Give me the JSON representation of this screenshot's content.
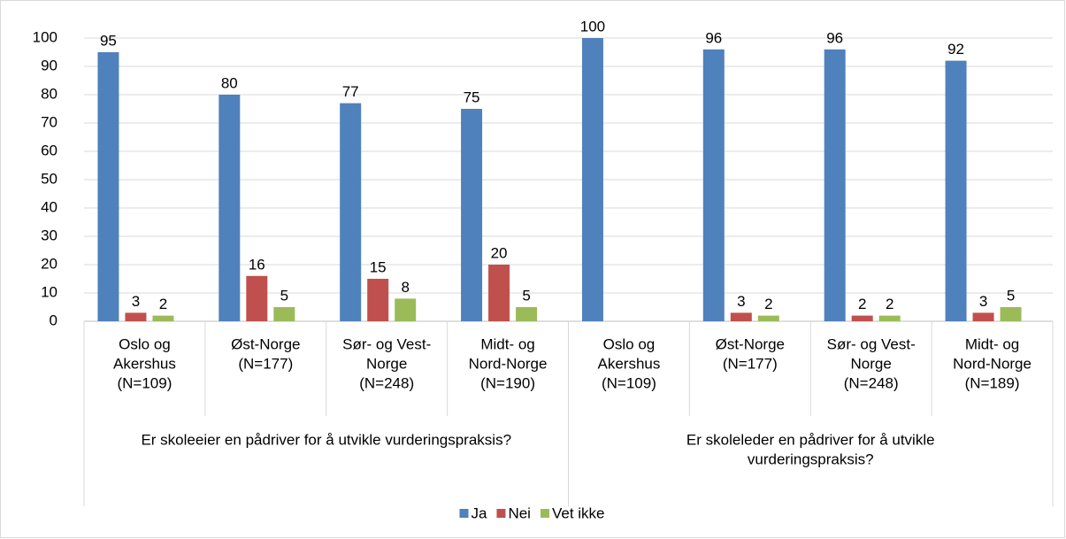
{
  "chart_data": {
    "type": "bar",
    "categories": [
      [
        "Oslo og",
        "Akershus",
        "(N=109)"
      ],
      [
        "Øst-Norge",
        "(N=177)"
      ],
      [
        "Sør- og Vest-",
        "Norge",
        "(N=248)"
      ],
      [
        "Midt- og",
        "Nord-Norge",
        "(N=190)"
      ],
      [
        "Oslo og",
        "Akershus",
        "(N=109)"
      ],
      [
        "Øst-Norge",
        "(N=177)"
      ],
      [
        "Sør- og Vest-",
        "Norge",
        "(N=248)"
      ],
      [
        "Midt- og",
        "Nord-Norge",
        "(N=189)"
      ]
    ],
    "groups": [
      [
        "Er skoleeier en pådriver for å utvikle vurderingspraksis?"
      ],
      [
        "Er skoleleder en pådriver for å utvikle",
        "vurderingspraksis?"
      ]
    ],
    "series": [
      {
        "name": "Ja",
        "color": "#4f81bd",
        "values": [
          95,
          80,
          77,
          75,
          100,
          96,
          96,
          92
        ]
      },
      {
        "name": "Nei",
        "color": "#c0504d",
        "values": [
          3,
          16,
          15,
          20,
          null,
          3,
          2,
          3
        ]
      },
      {
        "name": "Vet ikke",
        "color": "#9bbb59",
        "values": [
          2,
          5,
          8,
          5,
          null,
          2,
          2,
          5
        ]
      }
    ],
    "ylim": [
      0,
      100
    ],
    "yticks": [
      0,
      10,
      20,
      30,
      40,
      50,
      60,
      70,
      80,
      90,
      100
    ],
    "grid": true,
    "legend": "bottom"
  }
}
